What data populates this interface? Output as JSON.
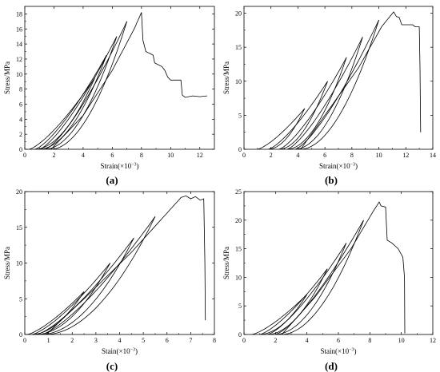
{
  "chart_data": [
    {
      "type": "line",
      "panel_label": "(a)",
      "xlabel": "Strain(×10",
      "xlabel_sup": "−3",
      "xlabel_close": ")",
      "ylabel": "Stress/MPa",
      "xlim": [
        0,
        13
      ],
      "ylim": [
        0,
        19
      ],
      "xticks": [
        0,
        2,
        4,
        6,
        8,
        10,
        12
      ],
      "yticks": [
        0,
        2,
        4,
        6,
        8,
        10,
        12,
        14,
        16,
        18
      ],
      "loops": [
        {
          "start": 0.3,
          "peak_x": 4.8,
          "peak_y": 9.5,
          "end": 0.7
        },
        {
          "start": 0.7,
          "peak_x": 5.6,
          "peak_y": 12.5,
          "end": 1.0
        },
        {
          "start": 1.0,
          "peak_x": 6.3,
          "peak_y": 15.0,
          "end": 1.4
        },
        {
          "start": 1.4,
          "peak_x": 7.0,
          "peak_y": 17.0,
          "end": 1.8
        }
      ],
      "envelope": [
        [
          1.8,
          0
        ],
        [
          4.0,
          4.5
        ],
        [
          6.0,
          10.5
        ],
        [
          7.5,
          16.0
        ],
        [
          8.0,
          18.2
        ]
      ],
      "post_peak": [
        [
          8.0,
          18.2
        ],
        [
          8.1,
          14.5
        ],
        [
          8.3,
          13.0
        ],
        [
          8.8,
          12.5
        ],
        [
          8.9,
          11.5
        ],
        [
          9.4,
          11.0
        ],
        [
          9.6,
          10.5
        ],
        [
          9.8,
          9.6
        ],
        [
          10.0,
          9.2
        ],
        [
          10.7,
          9.2
        ],
        [
          10.8,
          7.2
        ],
        [
          11.0,
          6.9
        ],
        [
          11.5,
          7.1
        ],
        [
          12.0,
          7.0
        ],
        [
          12.5,
          7.1
        ]
      ]
    },
    {
      "type": "line",
      "panel_label": "(b)",
      "xlabel": "Strain(×10",
      "xlabel_sup": "−3",
      "xlabel_close": ")",
      "ylabel": "Stress/MPa",
      "xlim": [
        0,
        14
      ],
      "ylim": [
        0,
        21
      ],
      "xticks": [
        0,
        2,
        4,
        6,
        8,
        10,
        12,
        14
      ],
      "yticks": [
        0,
        5,
        10,
        15,
        20
      ],
      "loops": [
        {
          "start": 1.0,
          "peak_x": 4.5,
          "peak_y": 6.0,
          "end": 1.8
        },
        {
          "start": 1.8,
          "peak_x": 6.2,
          "peak_y": 10.0,
          "end": 2.6
        },
        {
          "start": 2.6,
          "peak_x": 7.6,
          "peak_y": 13.5,
          "end": 3.2
        },
        {
          "start": 3.2,
          "peak_x": 8.8,
          "peak_y": 16.5,
          "end": 3.8
        },
        {
          "start": 3.8,
          "peak_x": 10.0,
          "peak_y": 19.0,
          "end": 4.2
        }
      ],
      "envelope": [
        [
          4.2,
          0
        ],
        [
          6.0,
          5.0
        ],
        [
          8.5,
          12.0
        ],
        [
          10.2,
          18.0
        ],
        [
          11.1,
          20.2
        ]
      ],
      "post_peak": [
        [
          11.1,
          20.2
        ],
        [
          11.3,
          19.5
        ],
        [
          11.5,
          19.4
        ],
        [
          11.7,
          18.3
        ],
        [
          12.5,
          18.3
        ],
        [
          12.7,
          18.0
        ],
        [
          13.0,
          18.0
        ],
        [
          13.05,
          12.0
        ],
        [
          13.1,
          2.5
        ]
      ]
    },
    {
      "type": "line",
      "panel_label": "(c)",
      "xlabel": "Stain(×10",
      "xlabel_sup": "−3",
      "xlabel_close": ")",
      "ylabel": "Stress/MPa",
      "xlim": [
        0,
        8
      ],
      "ylim": [
        0,
        20
      ],
      "xticks": [
        0,
        1,
        2,
        3,
        4,
        5,
        6,
        7,
        8
      ],
      "yticks": [
        0,
        5,
        10,
        15,
        20
      ],
      "loops": [
        {
          "start": 0.1,
          "peak_x": 2.5,
          "peak_y": 6.0,
          "end": 0.3
        },
        {
          "start": 0.3,
          "peak_x": 3.6,
          "peak_y": 10.0,
          "end": 0.5
        },
        {
          "start": 0.5,
          "peak_x": 4.6,
          "peak_y": 13.5,
          "end": 0.7
        },
        {
          "start": 0.7,
          "peak_x": 5.5,
          "peak_y": 16.5,
          "end": 0.9
        }
      ],
      "envelope": [
        [
          0.9,
          0
        ],
        [
          2.5,
          5.0
        ],
        [
          4.5,
          11.5
        ],
        [
          6.0,
          17.0
        ],
        [
          6.6,
          19.2
        ]
      ],
      "post_peak": [
        [
          6.6,
          19.2
        ],
        [
          6.8,
          19.4
        ],
        [
          7.0,
          19.0
        ],
        [
          7.2,
          19.3
        ],
        [
          7.4,
          18.8
        ],
        [
          7.55,
          19.0
        ],
        [
          7.6,
          10.0
        ],
        [
          7.62,
          2.0
        ]
      ]
    },
    {
      "type": "line",
      "panel_label": "(d)",
      "xlabel": "Stain(×10",
      "xlabel_sup": "−3",
      "xlabel_close": ")",
      "ylabel": "Stress/MPa",
      "xlim": [
        0,
        12
      ],
      "ylim": [
        0,
        25
      ],
      "xticks": [
        0,
        2,
        4,
        6,
        8,
        10,
        12
      ],
      "yticks": [
        0,
        5,
        10,
        15,
        20,
        25
      ],
      "loops": [
        {
          "start": 0.5,
          "peak_x": 4.0,
          "peak_y": 7.0,
          "end": 1.0
        },
        {
          "start": 1.0,
          "peak_x": 5.3,
          "peak_y": 11.5,
          "end": 1.5
        },
        {
          "start": 1.5,
          "peak_x": 6.5,
          "peak_y": 16.0,
          "end": 2.0
        },
        {
          "start": 2.0,
          "peak_x": 7.6,
          "peak_y": 20.0,
          "end": 2.4
        }
      ],
      "envelope": [
        [
          2.4,
          0
        ],
        [
          4.5,
          6.5
        ],
        [
          6.8,
          15.0
        ],
        [
          8.2,
          21.5
        ],
        [
          8.6,
          23.2
        ]
      ],
      "post_peak": [
        [
          8.6,
          23.2
        ],
        [
          8.7,
          22.5
        ],
        [
          9.0,
          22.3
        ],
        [
          9.1,
          16.5
        ],
        [
          9.4,
          16.0
        ],
        [
          9.6,
          15.5
        ],
        [
          9.8,
          15.0
        ],
        [
          10.0,
          14.0
        ],
        [
          10.1,
          13.5
        ],
        [
          10.2,
          10.0
        ],
        [
          10.22,
          0.2
        ]
      ]
    }
  ]
}
